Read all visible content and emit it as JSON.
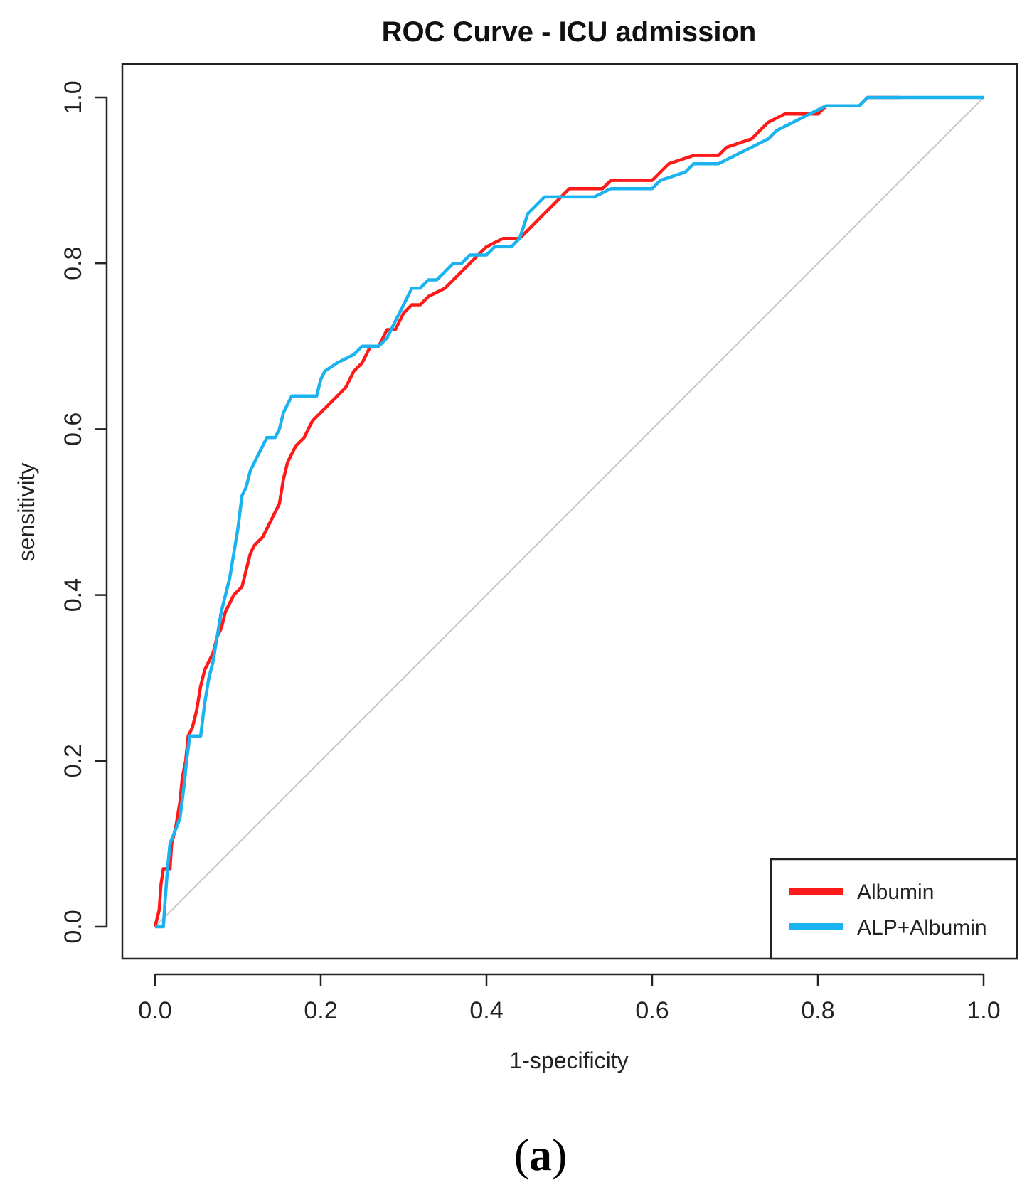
{
  "chart_data": {
    "type": "line",
    "title": "ROC Curve - ICU admission",
    "xlabel": "1-specificity",
    "ylabel": "sensitivity",
    "xlim": [
      0.0,
      1.0
    ],
    "ylim": [
      0.0,
      1.0
    ],
    "xticks": [
      "0.0",
      "0.2",
      "0.4",
      "0.6",
      "0.8",
      "1.0"
    ],
    "yticks": [
      "0.0",
      "0.2",
      "0.4",
      "0.6",
      "0.8",
      "1.0"
    ],
    "grid": false,
    "legend_position": "bottom-right",
    "reference_line": {
      "name": "chance",
      "color": "#c8c8c8",
      "points": [
        [
          0,
          0
        ],
        [
          1,
          1
        ]
      ]
    },
    "series": [
      {
        "name": "Albumin",
        "color": "#ff1a1a",
        "points": [
          [
            0.0,
            0.0
          ],
          [
            0.005,
            0.02
          ],
          [
            0.007,
            0.05
          ],
          [
            0.01,
            0.07
          ],
          [
            0.018,
            0.07
          ],
          [
            0.02,
            0.1
          ],
          [
            0.025,
            0.12
          ],
          [
            0.03,
            0.15
          ],
          [
            0.033,
            0.18
          ],
          [
            0.037,
            0.2
          ],
          [
            0.04,
            0.23
          ],
          [
            0.045,
            0.24
          ],
          [
            0.05,
            0.26
          ],
          [
            0.055,
            0.29
          ],
          [
            0.06,
            0.31
          ],
          [
            0.065,
            0.32
          ],
          [
            0.07,
            0.33
          ],
          [
            0.075,
            0.35
          ],
          [
            0.08,
            0.36
          ],
          [
            0.085,
            0.38
          ],
          [
            0.09,
            0.39
          ],
          [
            0.095,
            0.4
          ],
          [
            0.105,
            0.41
          ],
          [
            0.11,
            0.43
          ],
          [
            0.115,
            0.45
          ],
          [
            0.12,
            0.46
          ],
          [
            0.13,
            0.47
          ],
          [
            0.135,
            0.48
          ],
          [
            0.14,
            0.49
          ],
          [
            0.145,
            0.5
          ],
          [
            0.15,
            0.51
          ],
          [
            0.155,
            0.54
          ],
          [
            0.16,
            0.56
          ],
          [
            0.165,
            0.57
          ],
          [
            0.17,
            0.58
          ],
          [
            0.18,
            0.59
          ],
          [
            0.185,
            0.6
          ],
          [
            0.19,
            0.61
          ],
          [
            0.2,
            0.62
          ],
          [
            0.21,
            0.63
          ],
          [
            0.22,
            0.64
          ],
          [
            0.23,
            0.65
          ],
          [
            0.24,
            0.67
          ],
          [
            0.25,
            0.68
          ],
          [
            0.26,
            0.7
          ],
          [
            0.27,
            0.7
          ],
          [
            0.28,
            0.72
          ],
          [
            0.29,
            0.72
          ],
          [
            0.3,
            0.74
          ],
          [
            0.31,
            0.75
          ],
          [
            0.32,
            0.75
          ],
          [
            0.33,
            0.76
          ],
          [
            0.35,
            0.77
          ],
          [
            0.36,
            0.78
          ],
          [
            0.37,
            0.79
          ],
          [
            0.38,
            0.8
          ],
          [
            0.39,
            0.81
          ],
          [
            0.4,
            0.82
          ],
          [
            0.42,
            0.83
          ],
          [
            0.44,
            0.83
          ],
          [
            0.45,
            0.84
          ],
          [
            0.46,
            0.85
          ],
          [
            0.47,
            0.86
          ],
          [
            0.48,
            0.87
          ],
          [
            0.49,
            0.88
          ],
          [
            0.5,
            0.89
          ],
          [
            0.54,
            0.89
          ],
          [
            0.55,
            0.9
          ],
          [
            0.6,
            0.9
          ],
          [
            0.61,
            0.91
          ],
          [
            0.62,
            0.92
          ],
          [
            0.65,
            0.93
          ],
          [
            0.68,
            0.93
          ],
          [
            0.69,
            0.94
          ],
          [
            0.72,
            0.95
          ],
          [
            0.73,
            0.96
          ],
          [
            0.74,
            0.97
          ],
          [
            0.76,
            0.98
          ],
          [
            0.8,
            0.98
          ],
          [
            0.81,
            0.99
          ],
          [
            0.85,
            0.99
          ],
          [
            0.86,
            1.0
          ],
          [
            0.9,
            1.0
          ]
        ]
      },
      {
        "name": "ALP+Albumin",
        "color": "#1ab3f0",
        "points": [
          [
            0.0,
            0.0
          ],
          [
            0.01,
            0.0
          ],
          [
            0.012,
            0.03
          ],
          [
            0.015,
            0.07
          ],
          [
            0.018,
            0.1
          ],
          [
            0.022,
            0.11
          ],
          [
            0.03,
            0.13
          ],
          [
            0.035,
            0.17
          ],
          [
            0.038,
            0.2
          ],
          [
            0.042,
            0.23
          ],
          [
            0.055,
            0.23
          ],
          [
            0.06,
            0.27
          ],
          [
            0.065,
            0.3
          ],
          [
            0.07,
            0.32
          ],
          [
            0.075,
            0.35
          ],
          [
            0.08,
            0.38
          ],
          [
            0.085,
            0.4
          ],
          [
            0.09,
            0.42
          ],
          [
            0.095,
            0.45
          ],
          [
            0.1,
            0.48
          ],
          [
            0.105,
            0.52
          ],
          [
            0.11,
            0.53
          ],
          [
            0.115,
            0.55
          ],
          [
            0.12,
            0.56
          ],
          [
            0.125,
            0.57
          ],
          [
            0.13,
            0.58
          ],
          [
            0.135,
            0.59
          ],
          [
            0.145,
            0.59
          ],
          [
            0.15,
            0.6
          ],
          [
            0.155,
            0.62
          ],
          [
            0.16,
            0.63
          ],
          [
            0.165,
            0.64
          ],
          [
            0.195,
            0.64
          ],
          [
            0.2,
            0.66
          ],
          [
            0.205,
            0.67
          ],
          [
            0.22,
            0.68
          ],
          [
            0.24,
            0.69
          ],
          [
            0.25,
            0.7
          ],
          [
            0.27,
            0.7
          ],
          [
            0.28,
            0.71
          ],
          [
            0.29,
            0.73
          ],
          [
            0.3,
            0.75
          ],
          [
            0.31,
            0.77
          ],
          [
            0.32,
            0.77
          ],
          [
            0.33,
            0.78
          ],
          [
            0.34,
            0.78
          ],
          [
            0.35,
            0.79
          ],
          [
            0.36,
            0.8
          ],
          [
            0.37,
            0.8
          ],
          [
            0.38,
            0.81
          ],
          [
            0.4,
            0.81
          ],
          [
            0.41,
            0.82
          ],
          [
            0.43,
            0.82
          ],
          [
            0.44,
            0.83
          ],
          [
            0.45,
            0.86
          ],
          [
            0.46,
            0.87
          ],
          [
            0.47,
            0.88
          ],
          [
            0.5,
            0.88
          ],
          [
            0.53,
            0.88
          ],
          [
            0.55,
            0.89
          ],
          [
            0.6,
            0.89
          ],
          [
            0.61,
            0.9
          ],
          [
            0.64,
            0.91
          ],
          [
            0.65,
            0.92
          ],
          [
            0.68,
            0.92
          ],
          [
            0.7,
            0.93
          ],
          [
            0.72,
            0.94
          ],
          [
            0.74,
            0.95
          ],
          [
            0.75,
            0.96
          ],
          [
            0.77,
            0.97
          ],
          [
            0.79,
            0.98
          ],
          [
            0.81,
            0.99
          ],
          [
            0.85,
            0.99
          ],
          [
            0.86,
            1.0
          ],
          [
            1.0,
            1.0
          ]
        ]
      }
    ]
  },
  "caption": {
    "open": "(",
    "letter": "a",
    "close": ")"
  }
}
